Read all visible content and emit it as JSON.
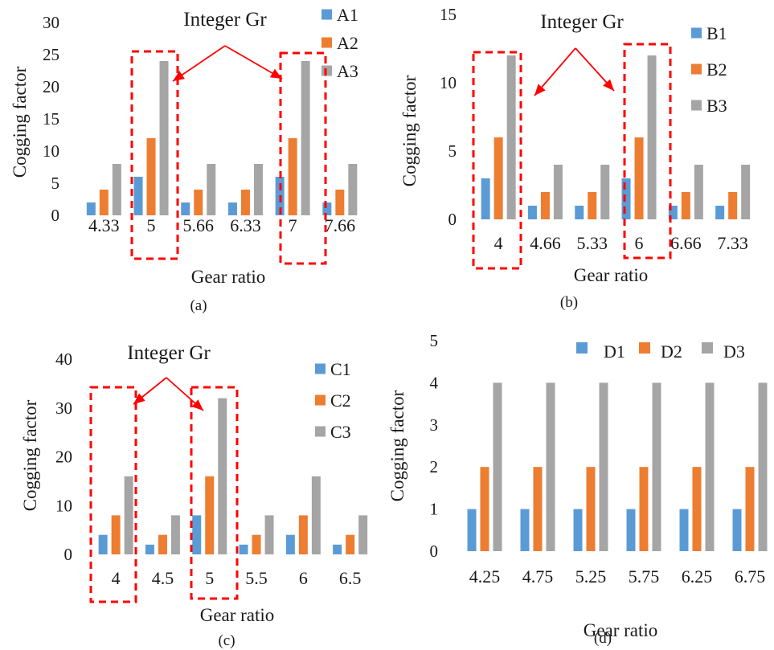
{
  "colors": {
    "s1": "#5b9bd5",
    "s2": "#ed7d31",
    "s3": "#a5a5a5",
    "highlight": "#ff0000"
  },
  "chart_data": [
    {
      "id": "a",
      "type": "bar",
      "caption": "(a)",
      "xlabel": "Gear ratio",
      "ylabel": "Cogging factor",
      "ylim": [
        0,
        30
      ],
      "yticks": [
        0,
        5,
        10,
        15,
        20,
        25,
        30
      ],
      "categories": [
        "4.33",
        "5",
        "5.66",
        "6.33",
        "7",
        "7.66"
      ],
      "series": [
        {
          "name": "A1",
          "values": [
            2,
            6,
            2,
            2,
            6,
            2
          ]
        },
        {
          "name": "A2",
          "values": [
            4,
            12,
            4,
            4,
            12,
            4
          ]
        },
        {
          "name": "A3",
          "values": [
            8,
            24,
            8,
            8,
            24,
            8
          ]
        }
      ],
      "legend": "right",
      "annotation": "Integer Gr",
      "highlighted_categories": [
        "5",
        "7"
      ]
    },
    {
      "id": "b",
      "type": "bar",
      "caption": "(b)",
      "xlabel": "Gear ratio",
      "ylabel": "Cogging factor",
      "ylim": [
        0,
        15
      ],
      "yticks": [
        0,
        5,
        10,
        15
      ],
      "categories": [
        "4",
        "4.66",
        "5.33",
        "6",
        "6.66",
        "7.33"
      ],
      "series": [
        {
          "name": "B1",
          "values": [
            3,
            1,
            1,
            3,
            1,
            1
          ]
        },
        {
          "name": "B2",
          "values": [
            6,
            2,
            2,
            6,
            2,
            2
          ]
        },
        {
          "name": "B3",
          "values": [
            12,
            4,
            4,
            12,
            4,
            4
          ]
        }
      ],
      "legend": "right",
      "annotation": "Integer Gr",
      "highlighted_categories": [
        "4",
        "6"
      ]
    },
    {
      "id": "c",
      "type": "bar",
      "caption": "(c)",
      "xlabel": "Gear ratio",
      "ylabel": "Cogging factor",
      "ylim": [
        0,
        40
      ],
      "yticks": [
        0,
        10,
        20,
        30,
        40
      ],
      "categories": [
        "4",
        "4.5",
        "5",
        "5.5",
        "6",
        "6.5"
      ],
      "series": [
        {
          "name": "C1",
          "values": [
            4,
            2,
            8,
            2,
            4,
            2
          ]
        },
        {
          "name": "C2",
          "values": [
            8,
            4,
            16,
            4,
            8,
            4
          ]
        },
        {
          "name": "C3",
          "values": [
            16,
            8,
            32,
            8,
            16,
            8
          ]
        }
      ],
      "legend": "right",
      "annotation": "Integer Gr",
      "highlighted_categories": [
        "4",
        "5"
      ]
    },
    {
      "id": "d",
      "type": "bar",
      "caption": "(d)",
      "xlabel": "Gear ratio",
      "ylabel": "Cogging factor",
      "ylim": [
        0,
        5
      ],
      "yticks": [
        0,
        1,
        2,
        3,
        4,
        5
      ],
      "categories": [
        "4.25",
        "4.75",
        "5.25",
        "5.75",
        "6.25",
        "6.75"
      ],
      "series": [
        {
          "name": "D1",
          "values": [
            1,
            1,
            1,
            1,
            1,
            1
          ]
        },
        {
          "name": "D2",
          "values": [
            2,
            2,
            2,
            2,
            2,
            2
          ]
        },
        {
          "name": "D3",
          "values": [
            4,
            4,
            4,
            4,
            4,
            4
          ]
        }
      ],
      "legend": "top",
      "annotation": "",
      "highlighted_categories": []
    }
  ]
}
